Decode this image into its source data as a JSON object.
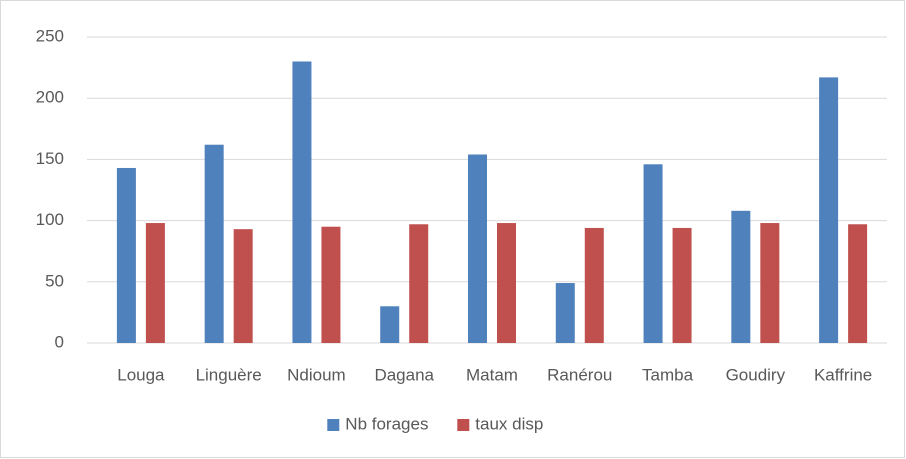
{
  "chart_data": {
    "type": "bar",
    "categories": [
      "Louga",
      "Linguère",
      "Ndioum",
      "Dagana",
      "Matam",
      "Ranérou",
      "Tamba",
      "Goudiry",
      "Kaffrine"
    ],
    "series": [
      {
        "name": "Nb forages",
        "color": "#4f81bd",
        "values": [
          143,
          162,
          230,
          30,
          154,
          49,
          146,
          108,
          217
        ]
      },
      {
        "name": "taux disp",
        "color": "#c0504d",
        "values": [
          98,
          93,
          95,
          97,
          98,
          94,
          94,
          98,
          97
        ]
      }
    ],
    "ylim": [
      0,
      250
    ],
    "yticks": [
      0,
      50,
      100,
      150,
      200,
      250
    ],
    "grid": true,
    "legend": "bottom"
  }
}
